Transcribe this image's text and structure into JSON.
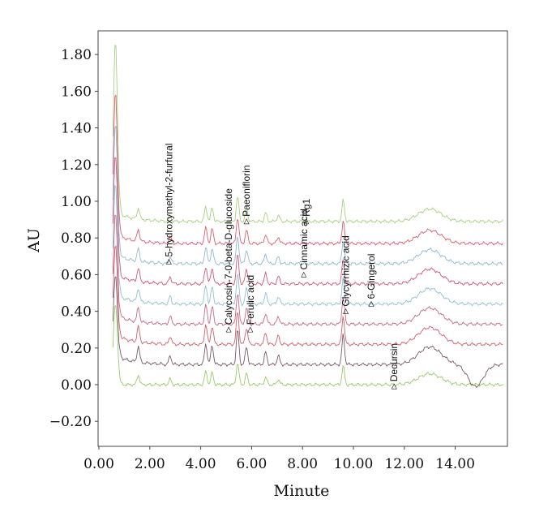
{
  "chart_data": {
    "type": "line",
    "xlabel": "Minute",
    "ylabel": "AU",
    "xlim": [
      0,
      16
    ],
    "ylim": [
      -0.3,
      1.92
    ],
    "x_ticks": [
      "0.00",
      "2.00",
      "4.00",
      "6.00",
      "8.00",
      "10.00",
      "12.00",
      "14.00"
    ],
    "y_ticks": [
      "1.80",
      "1.60",
      "1.40",
      "1.20",
      "1.00",
      "0.80",
      "0.60",
      "0.40",
      "0.20",
      "0.00",
      "−0.20"
    ],
    "grid": false,
    "series": [
      {
        "color": "#9acb6b",
        "baseline": 0.0
      },
      {
        "color": "#7a5a6a",
        "baseline": 0.11
      },
      {
        "color": "#d06070",
        "baseline": 0.22
      },
      {
        "color": "#c86a80",
        "baseline": 0.33
      },
      {
        "color": "#90c0d0",
        "baseline": 0.44
      },
      {
        "color": "#d05878",
        "baseline": 0.55
      },
      {
        "color": "#90b8d0",
        "baseline": 0.66
      },
      {
        "color": "#d86070",
        "baseline": 0.77
      },
      {
        "color": "#a8d080",
        "baseline": 0.89
      }
    ],
    "peaks": [
      {
        "x": 0.65,
        "h": 1.1
      },
      {
        "x": 1.55,
        "h": 0.09
      },
      {
        "x": 2.8,
        "h": 0.05
      },
      {
        "x": 4.2,
        "h": 0.12
      },
      {
        "x": 4.45,
        "h": 0.11
      },
      {
        "x": 5.45,
        "h": 0.2
      },
      {
        "x": 5.8,
        "h": 0.1
      },
      {
        "x": 6.55,
        "h": 0.07
      },
      {
        "x": 7.05,
        "h": 0.05
      },
      {
        "x": 9.6,
        "h": 0.17
      },
      {
        "x": 13.0,
        "h": 0.1
      }
    ],
    "annotations": [
      {
        "text": "5-hydroxymethyl-2-furfural",
        "x": 2.75,
        "y": 0.67
      },
      {
        "text": "Calycosin-7-0-beta-D-glucoside",
        "x": 5.1,
        "y": 0.3
      },
      {
        "text": "Paeoniflorin",
        "x": 5.8,
        "y": 0.89
      },
      {
        "text": "Ferulic acid",
        "x": 5.95,
        "y": 0.3
      },
      {
        "text": "Rg1",
        "x": 8.15,
        "y": 0.89
      },
      {
        "text": "Cinnamic acid",
        "x": 8.05,
        "y": 0.6
      },
      {
        "text": "Glycyrrhizic acid",
        "x": 9.7,
        "y": 0.4
      },
      {
        "text": "6-Gingerol",
        "x": 10.7,
        "y": 0.44
      },
      {
        "text": "Decursin",
        "x": 11.6,
        "y": -0.01
      }
    ]
  }
}
